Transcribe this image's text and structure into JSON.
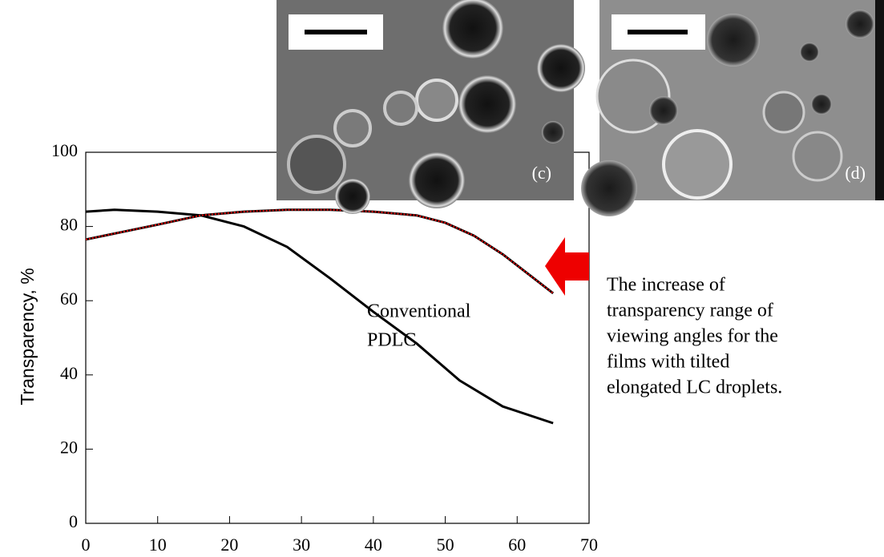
{
  "chart_data": {
    "type": "line",
    "ylabel": "Transparency, %",
    "xlim": [
      0,
      70
    ],
    "xticks": [
      0,
      10,
      20,
      30,
      40,
      50,
      60,
      70
    ],
    "ylim": [
      0,
      100
    ],
    "yticks": [
      0,
      20,
      40,
      60,
      80,
      100
    ],
    "series": [
      {
        "color": "#000000",
        "x": [
          0,
          4,
          10,
          16,
          22,
          28,
          34,
          40,
          46,
          52,
          58,
          65
        ],
        "values": [
          84,
          84.5,
          84,
          83,
          80,
          74.5,
          66,
          57,
          48.5,
          38.5,
          31.5,
          27
        ]
      },
      {
        "color": "#000000",
        "overlay_color": "#e00000",
        "x": [
          0,
          5,
          10,
          16,
          22,
          28,
          34,
          40,
          46,
          50,
          54,
          58,
          62,
          65
        ],
        "values": [
          76.5,
          78.5,
          80.5,
          83,
          84,
          84.5,
          84.5,
          84,
          83,
          81,
          77.5,
          72.5,
          66.5,
          62
        ]
      }
    ],
    "series_annotation": [
      "Conventional",
      "PDLC"
    ],
    "note": [
      "The increase of",
      "transparency range of",
      "viewing angles for the",
      "films with tilted",
      "elongated LC droplets."
    ],
    "panels": [
      "(c)",
      "(d)"
    ]
  }
}
